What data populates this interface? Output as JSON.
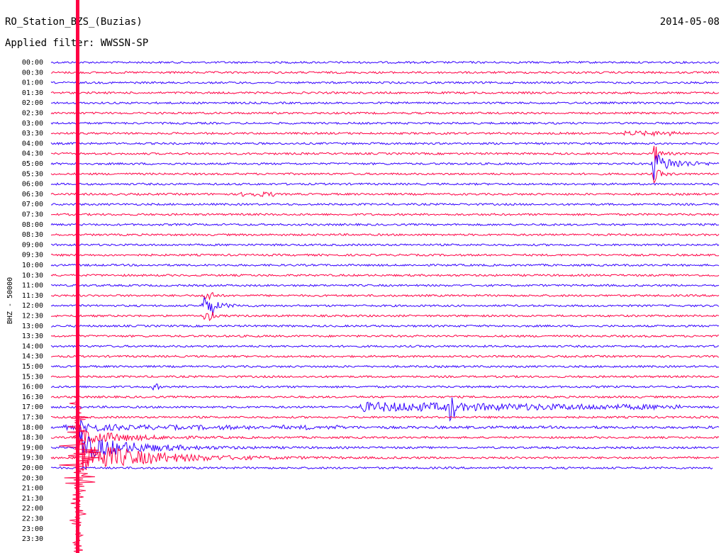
{
  "header": {
    "station": "RO_Station_BZS_(Buzias)",
    "date": "2014-05-08",
    "filter": "Applied filter: WWSSN-SP"
  },
  "axis": {
    "label": "BHZ - 50000",
    "times": [
      "00:00",
      "00:30",
      "01:00",
      "01:30",
      "02:00",
      "02:30",
      "03:00",
      "03:30",
      "04:00",
      "04:30",
      "05:00",
      "05:30",
      "06:00",
      "06:30",
      "07:00",
      "07:30",
      "08:00",
      "08:30",
      "09:00",
      "09:30",
      "10:00",
      "10:30",
      "11:00",
      "11:30",
      "12:00",
      "12:30",
      "13:00",
      "13:30",
      "14:00",
      "14:30",
      "15:00",
      "15:30",
      "16:00",
      "16:30",
      "17:00",
      "17:30",
      "18:00",
      "18:30",
      "19:00",
      "19:30",
      "20:00",
      "20:30",
      "21:00",
      "21:30",
      "22:00",
      "22:30",
      "23:00",
      "23:30"
    ]
  }
}
